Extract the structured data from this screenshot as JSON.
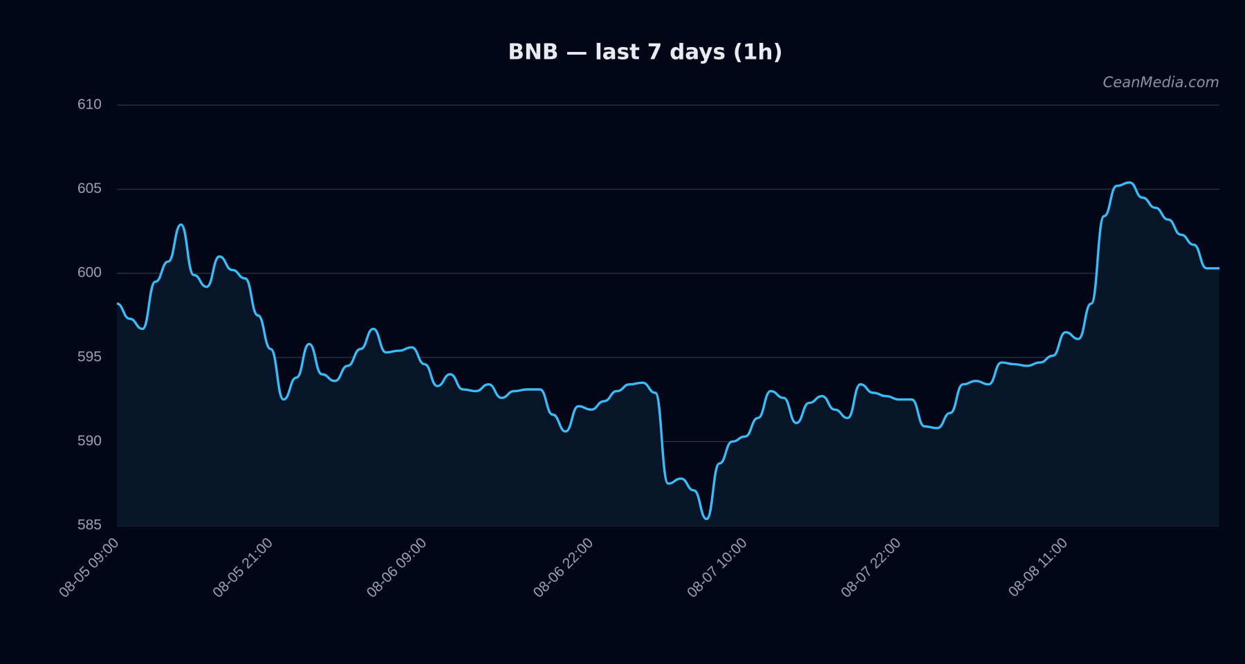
{
  "chart_data": {
    "type": "line",
    "title": "BNB — last 7 days (1h)",
    "watermark": "CeanMedia.com",
    "categories": [
      "08-05 09:00",
      null,
      null,
      null,
      null,
      null,
      null,
      null,
      null,
      null,
      null,
      null,
      "08-05 21:00",
      null,
      null,
      null,
      null,
      null,
      null,
      null,
      null,
      null,
      null,
      null,
      "08-06 09:00",
      null,
      null,
      null,
      null,
      null,
      null,
      null,
      null,
      null,
      null,
      null,
      null,
      "08-06 22:00",
      null,
      null,
      null,
      null,
      null,
      null,
      null,
      null,
      null,
      null,
      null,
      "08-07 10:00",
      null,
      null,
      null,
      null,
      null,
      null,
      null,
      null,
      null,
      null,
      null,
      "08-07 22:00",
      null,
      null,
      null,
      null,
      null,
      null,
      null,
      null,
      null,
      null,
      null,
      null,
      "08-08 11:00",
      null,
      null,
      null,
      null,
      null,
      null,
      null,
      null,
      null,
      null,
      null,
      null
    ],
    "series": [
      {
        "name": "BNB",
        "color": "#38bdf8",
        "fill": "#071528",
        "values": [
          598.2,
          597.3,
          596.7,
          599.5,
          600.7,
          602.9,
          599.9,
          599.2,
          601.0,
          600.2,
          599.7,
          597.5,
          595.5,
          592.5,
          593.8,
          595.8,
          594.0,
          593.6,
          594.5,
          595.5,
          596.7,
          595.3,
          595.4,
          595.6,
          594.6,
          593.3,
          594.0,
          593.1,
          593.0,
          593.4,
          592.6,
          593.0,
          593.1,
          593.1,
          591.6,
          590.6,
          592.1,
          591.9,
          592.4,
          593.0,
          593.4,
          593.5,
          592.9,
          587.5,
          587.8,
          587.1,
          585.4,
          588.7,
          590.0,
          590.3,
          591.4,
          593.0,
          592.6,
          591.1,
          592.3,
          592.7,
          591.9,
          591.4,
          593.4,
          592.9,
          592.7,
          592.5,
          592.5,
          590.9,
          590.8,
          591.7,
          593.4,
          593.6,
          593.4,
          594.7,
          594.6,
          594.5,
          594.7,
          595.1,
          596.5,
          596.1,
          598.2,
          603.4,
          605.2,
          605.4,
          604.5,
          603.9,
          603.2,
          602.3,
          601.7,
          600.3,
          600.3
        ]
      }
    ],
    "ylim": [
      585,
      610
    ],
    "yticks": [
      585,
      590,
      595,
      600,
      605,
      610
    ],
    "grid": true
  }
}
